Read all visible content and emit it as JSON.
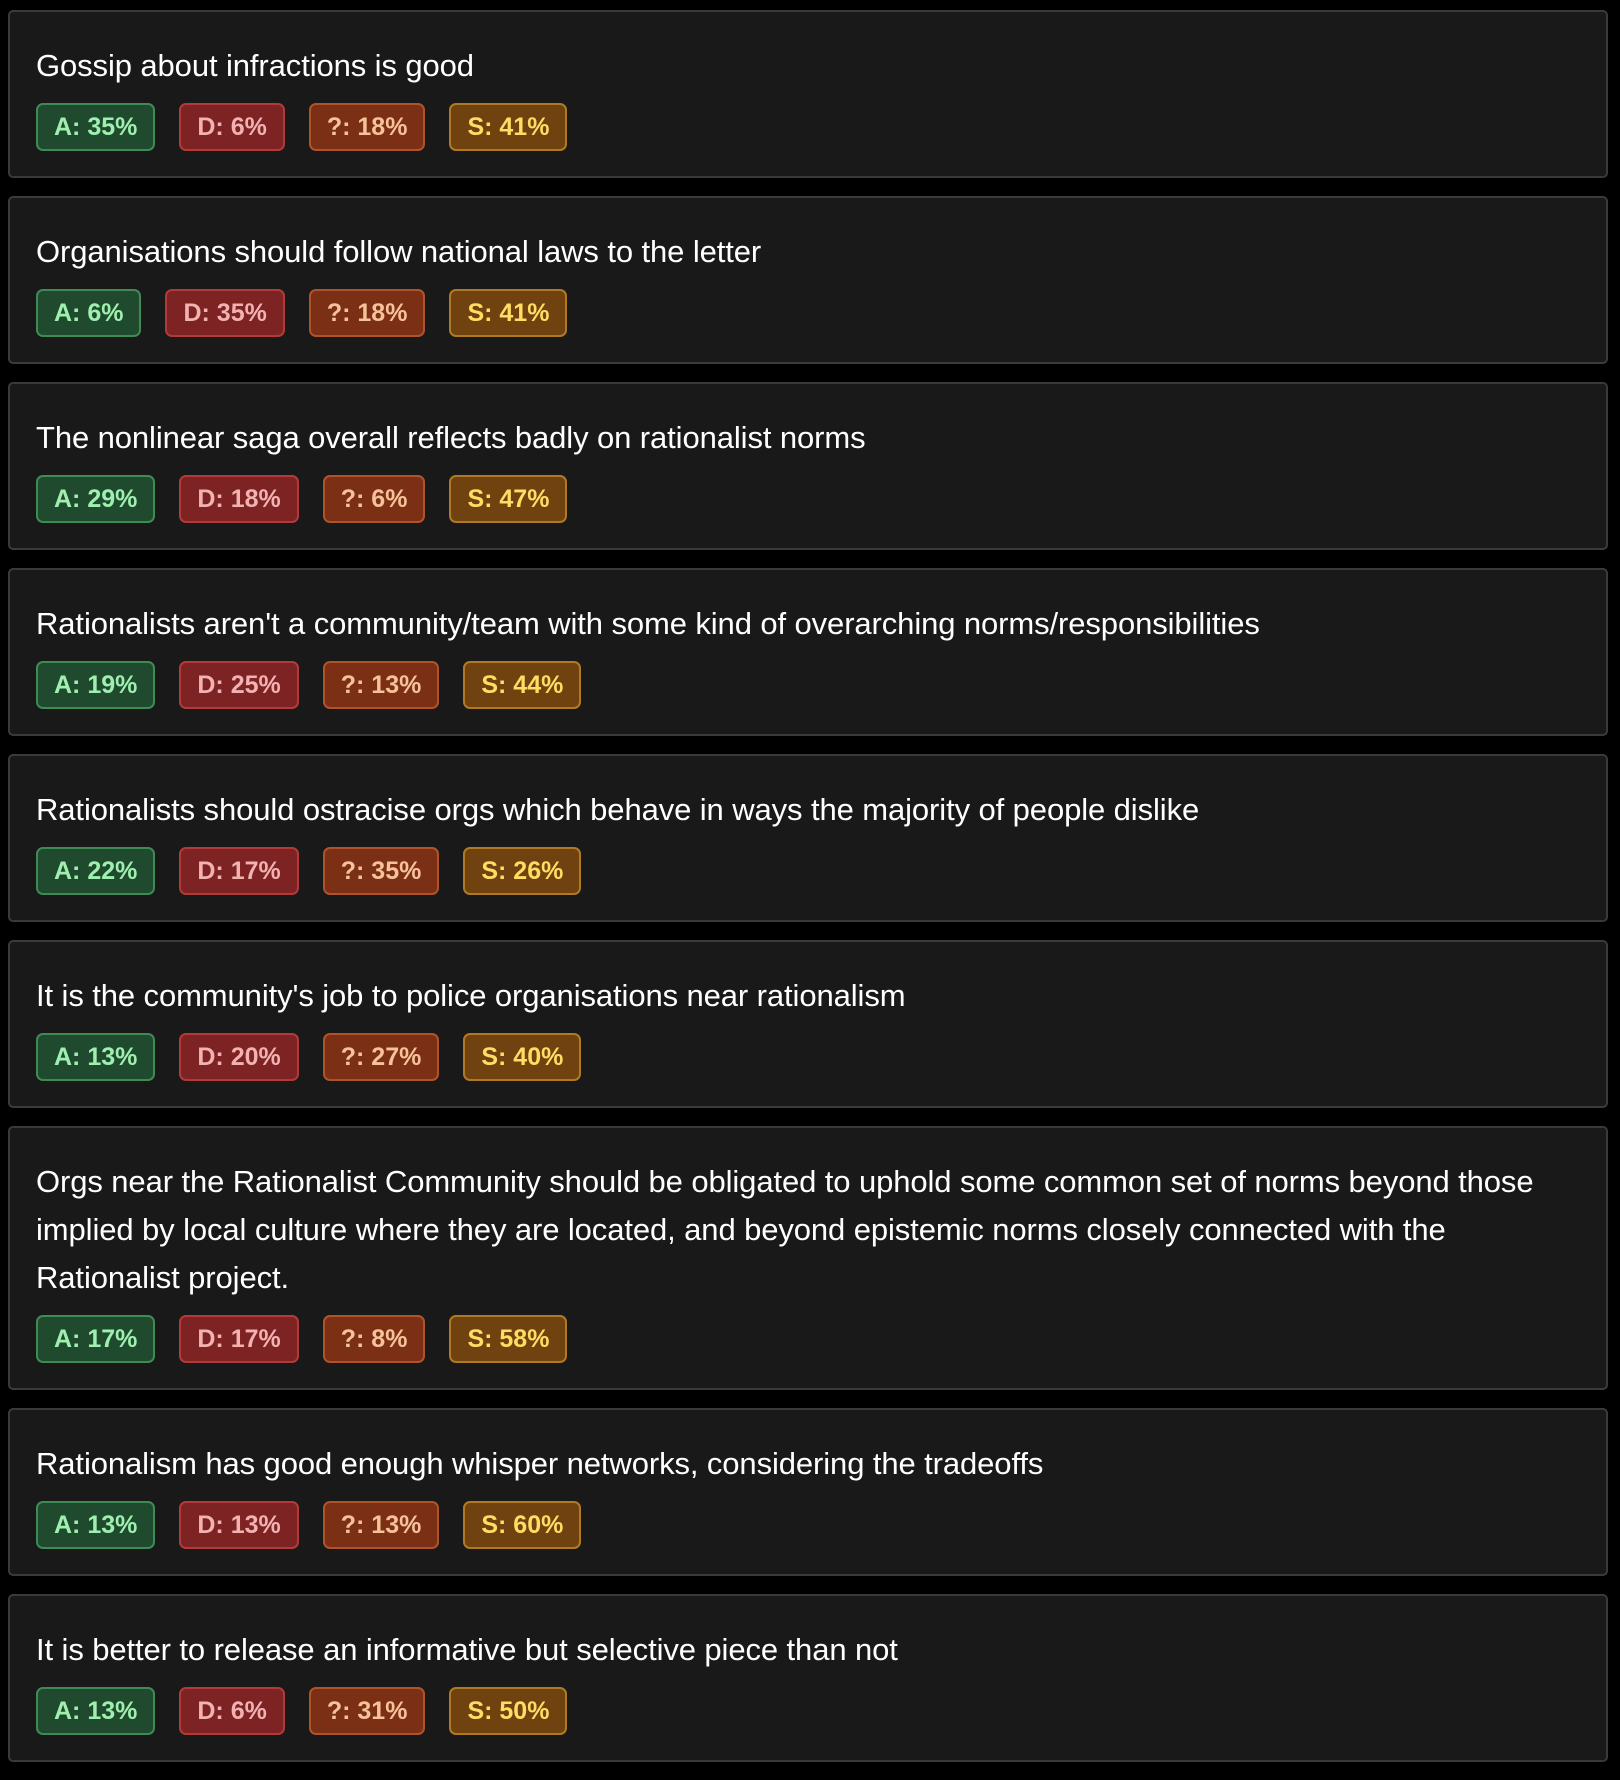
{
  "poll_results": [
    {
      "statement": "Gossip about infractions is good",
      "agree": "A: 35%",
      "disagree": "D: 6%",
      "unsure": "?: 18%",
      "skip": "S: 41%"
    },
    {
      "statement": "Organisations should follow national laws to the letter",
      "agree": "A: 6%",
      "disagree": "D: 35%",
      "unsure": "?: 18%",
      "skip": "S: 41%"
    },
    {
      "statement": "The nonlinear saga overall reflects badly on rationalist norms",
      "agree": "A: 29%",
      "disagree": "D: 18%",
      "unsure": "?: 6%",
      "skip": "S: 47%"
    },
    {
      "statement": "Rationalists aren't a community/team with some kind of overarching norms/responsibilities",
      "agree": "A: 19%",
      "disagree": "D: 25%",
      "unsure": "?: 13%",
      "skip": "S: 44%"
    },
    {
      "statement": "Rationalists should ostracise orgs which behave in ways the majority of people dislike",
      "agree": "A: 22%",
      "disagree": "D: 17%",
      "unsure": "?: 35%",
      "skip": "S: 26%"
    },
    {
      "statement": "It is the community's job to police organisations near rationalism",
      "agree": "A: 13%",
      "disagree": "D: 20%",
      "unsure": "?: 27%",
      "skip": "S: 40%"
    },
    {
      "statement": "Orgs near the Rationalist Community should be obligated to uphold some common set of norms beyond those implied by local culture where they are located, and beyond epistemic norms closely connected with the Rationalist project.",
      "agree": "A: 17%",
      "disagree": "D: 17%",
      "unsure": "?: 8%",
      "skip": "S: 58%"
    },
    {
      "statement": "Rationalism has good enough whisper networks, considering the tradeoffs",
      "agree": "A: 13%",
      "disagree": "D: 13%",
      "unsure": "?: 13%",
      "skip": "S: 60%"
    },
    {
      "statement": "It is better to release an informative but selective piece than not",
      "agree": "A: 13%",
      "disagree": "D: 6%",
      "unsure": "?: 31%",
      "skip": "S: 50%"
    }
  ],
  "colors": {
    "page_background": "#000000",
    "card_background": "#191919",
    "card_border": "#3a3a3a",
    "agree": "#1f4a2d",
    "disagree": "#7d2323",
    "unsure": "#7b3016",
    "skip": "#6f4210"
  }
}
